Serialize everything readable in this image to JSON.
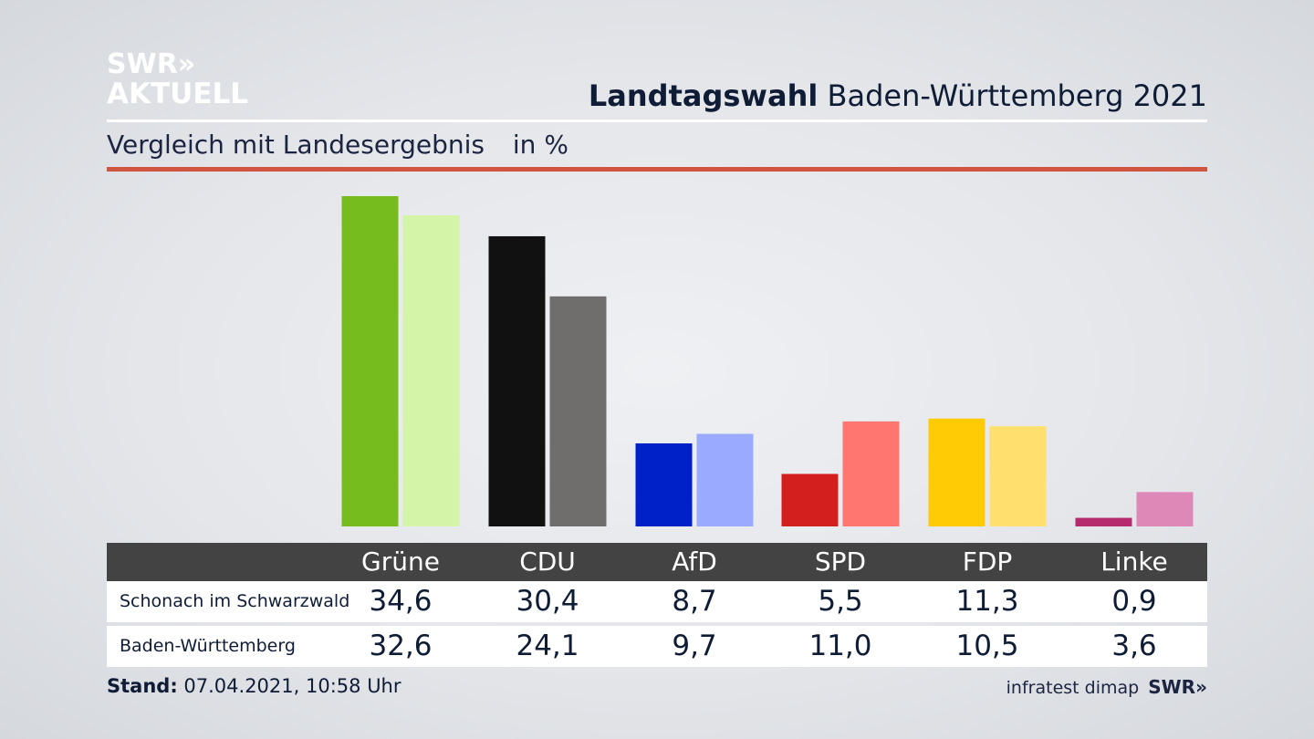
{
  "logo": {
    "line1": "SWR»",
    "line2": "AKTUELL"
  },
  "header": {
    "title_bold": "Landtagswahl",
    "title_rest": "Baden-Württemberg 2021"
  },
  "subtitle": {
    "text": "Vergleich mit Landesergebnis",
    "unit": "in %"
  },
  "colors": {
    "accent_rule": "#cf5540",
    "table_header": "#434343",
    "party_primary": [
      "#77bc1f",
      "#111111",
      "#0021c8",
      "#d41f1f",
      "#ffcb05",
      "#b62b6e"
    ],
    "party_secondary": [
      "#d4f5a8",
      "#6f6e6c",
      "#9aabff",
      "#ff7670",
      "#ffe06e",
      "#de88b8"
    ]
  },
  "chart_data": {
    "type": "bar",
    "categories": [
      "Grüne",
      "CDU",
      "AfD",
      "SPD",
      "FDP",
      "Linke"
    ],
    "series": [
      {
        "name": "Schonach im Schwarzwald",
        "values": [
          34.6,
          30.4,
          8.7,
          5.5,
          11.3,
          0.9
        ]
      },
      {
        "name": "Baden-Württemberg",
        "values": [
          32.6,
          24.1,
          9.7,
          11.0,
          10.5,
          3.6
        ]
      }
    ],
    "ylim": [
      0,
      34.6
    ],
    "grid": false,
    "legend": "table-below"
  },
  "table": {
    "headers": [
      "Grüne",
      "CDU",
      "AfD",
      "SPD",
      "FDP",
      "Linke"
    ],
    "rows": [
      {
        "label": "Schonach im Schwarzwald",
        "values": [
          "34,6",
          "30,4",
          "8,7",
          "5,5",
          "11,3",
          "0,9"
        ]
      },
      {
        "label": "Baden-Württemberg",
        "values": [
          "32,6",
          "24,1",
          "9,7",
          "11,0",
          "10,5",
          "3,6"
        ]
      }
    ]
  },
  "footer": {
    "stand_label": "Stand:",
    "stand_value": "07.04.2021, 10:58 Uhr",
    "source": "infratest dimap",
    "brand": "SWR»"
  }
}
